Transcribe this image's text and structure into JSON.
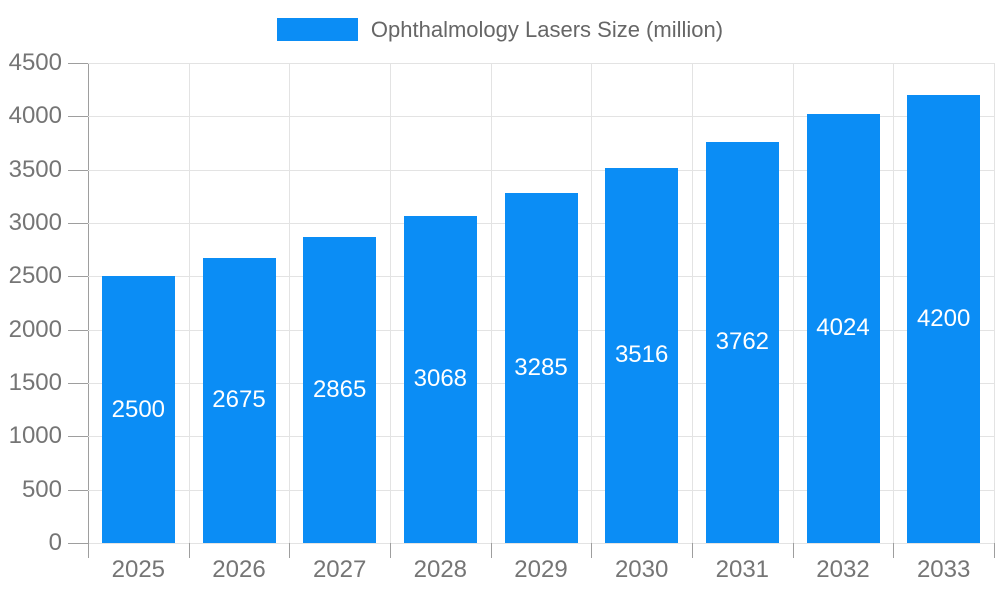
{
  "chart_data": {
    "type": "bar",
    "title": "",
    "legend_label": "Ophthalmology Lasers Size (million)",
    "legend_position": "top-center",
    "categories": [
      "2025",
      "2026",
      "2027",
      "2028",
      "2029",
      "2030",
      "2031",
      "2032",
      "2033"
    ],
    "values": [
      2500,
      2675,
      2865,
      3068,
      3285,
      3516,
      3762,
      4024,
      4200
    ],
    "value_labels_inside_bars": true,
    "xlabel": "",
    "ylabel": "",
    "ylim": [
      0,
      4500
    ],
    "ytick_step": 500,
    "yticks": [
      0,
      500,
      1000,
      1500,
      2000,
      2500,
      3000,
      3500,
      4000,
      4500
    ],
    "grid": true,
    "colors": {
      "bar": "#0b8df5",
      "bar_label": "#ffffff",
      "grid": "#e3e3e3",
      "axis": "#9e9e9e",
      "tick_label": "#757575",
      "legend_text": "#666666",
      "background": "#ffffff"
    }
  }
}
